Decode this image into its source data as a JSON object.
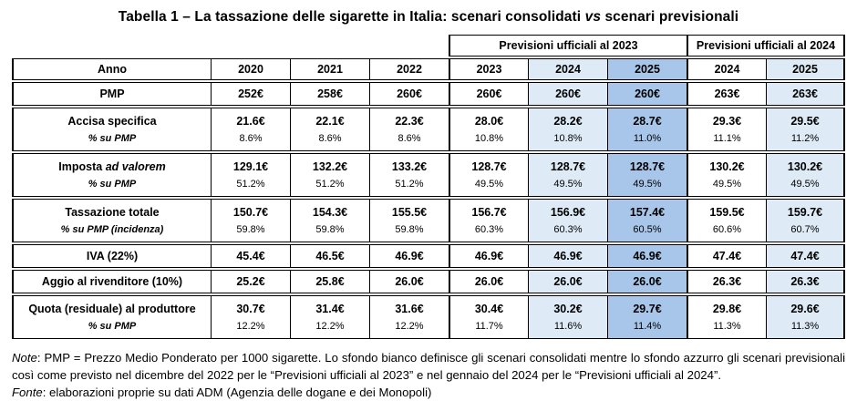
{
  "title": {
    "prefix": "Tabella 1 – La tassazione delle sigarette in Italia: scenari consolidati ",
    "vs": "vs",
    "suffix": " scenari previsionali"
  },
  "colors": {
    "light_blue": "#DEEBF7",
    "medium_blue": "#A7C6E9",
    "border": "#000000"
  },
  "table": {
    "group_headers": [
      {
        "label": "Previsioni ufficiali al 2023",
        "span": 3
      },
      {
        "label": "Previsioni ufficiali al 2024",
        "span": 2
      }
    ],
    "year_header": {
      "label": "Anno",
      "years": [
        "2020",
        "2021",
        "2022",
        "2023",
        "2024",
        "2025",
        "2024",
        "2025"
      ]
    },
    "column_shading": [
      "white",
      "white",
      "white",
      "white",
      "light",
      "medium",
      "white",
      "light"
    ],
    "block_start_columns": [
      3,
      6
    ],
    "rows": [
      {
        "name": "pmp",
        "label": "PMP",
        "values": [
          "252€",
          "258€",
          "260€",
          "260€",
          "260€",
          "260€",
          "263€",
          "263€"
        ]
      },
      {
        "name": "accisa-specifica",
        "label": "Accisa specifica",
        "values": [
          "21.6€",
          "22.1€",
          "22.3€",
          "28.0€",
          "28.2€",
          "28.7€",
          "29.3€",
          "29.5€"
        ],
        "sub": {
          "label": "% su PMP",
          "values": [
            "8.6%",
            "8.6%",
            "8.6%",
            "10.8%",
            "10.8%",
            "11.0%",
            "11.1%",
            "11.2%"
          ]
        }
      },
      {
        "name": "imposta-ad-valorem",
        "label_parts": [
          {
            "text": "Imposta ",
            "italic": false
          },
          {
            "text": "ad valorem",
            "italic": true
          }
        ],
        "values": [
          "129.1€",
          "132.2€",
          "133.2€",
          "128.7€",
          "128.7€",
          "128.7€",
          "130.2€",
          "130.2€"
        ],
        "sub": {
          "label": "% su PMP",
          "values": [
            "51.2%",
            "51.2%",
            "51.2%",
            "49.5%",
            "49.5%",
            "49.5%",
            "49.5%",
            "49.5%"
          ]
        }
      },
      {
        "name": "tassazione-totale",
        "label": "Tassazione totale",
        "values": [
          "150.7€",
          "154.3€",
          "155.5€",
          "156.7€",
          "156.9€",
          "157.4€",
          "159.5€",
          "159.7€"
        ],
        "sub": {
          "label": "% su PMP (incidenza)",
          "values": [
            "59.8%",
            "59.8%",
            "59.8%",
            "60.3%",
            "60.3%",
            "60.5%",
            "60.6%",
            "60.7%"
          ]
        }
      },
      {
        "name": "iva",
        "label": "IVA (22%)",
        "values": [
          "45.4€",
          "46.5€",
          "46.9€",
          "46.9€",
          "46.9€",
          "46.9€",
          "47.4€",
          "47.4€"
        ]
      },
      {
        "name": "aggio-rivenditore",
        "label": "Aggio al rivenditore (10%)",
        "values": [
          "25.2€",
          "25.8€",
          "26.0€",
          "26.0€",
          "26.0€",
          "26.0€",
          "26.3€",
          "26.3€"
        ]
      },
      {
        "name": "quota-produttore",
        "label": "Quota (residuale) al produttore",
        "values": [
          "30.7€",
          "31.4€",
          "31.6€",
          "30.4€",
          "30.2€",
          "29.7€",
          "29.8€",
          "29.6€"
        ],
        "sub": {
          "label": "% su PMP",
          "values": [
            "12.2%",
            "12.2%",
            "12.2%",
            "11.7%",
            "11.6%",
            "11.4%",
            "11.3%",
            "11.3%"
          ]
        }
      }
    ]
  },
  "notes": {
    "note_label": "Note",
    "note_body": ": PMP = Prezzo Medio Ponderato per 1000 sigarette. Lo sfondo bianco definisce gli scenari consolidati mentre lo sfondo azzurro gli scenari previsionali così come previsto nel dicembre del 2022 per le “Previsioni ufficiali al 2023” e nel gennaio del 2024 per le “Previsioni ufficiali al 2024”.",
    "fonte_label": "Fonte",
    "fonte_body": ": elaborazioni proprie su dati ADM (Agenzia delle dogane e dei Monopoli)"
  }
}
